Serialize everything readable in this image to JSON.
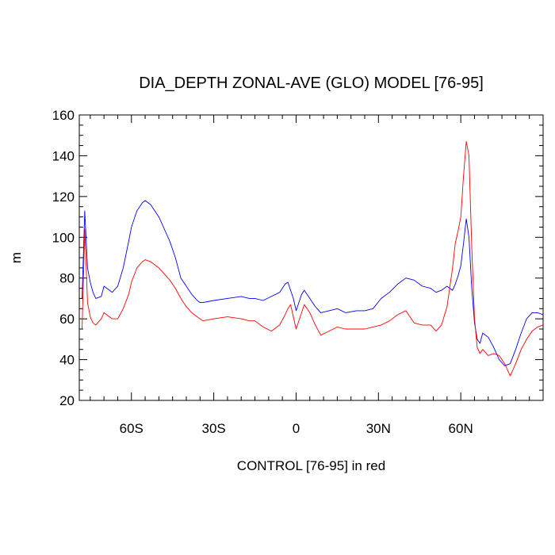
{
  "chart_data": {
    "type": "line",
    "title": "DIA_DEPTH ZONAL-AVE (GLO) MODEL [76-95]",
    "xlabel": "CONTROL [76-95] in red",
    "ylabel": "m",
    "xlim": [
      -79,
      90
    ],
    "ylim": [
      20,
      160
    ],
    "x_tick_values": [
      -60,
      -30,
      0,
      30,
      60
    ],
    "x_tick_labels": [
      "60S",
      "30S",
      "0",
      "30N",
      "60N"
    ],
    "y_ticks": [
      20,
      40,
      60,
      80,
      100,
      120,
      140,
      160
    ],
    "y_tick_labels": [
      "20",
      "40",
      "60",
      "80",
      "100",
      "120",
      "140",
      "160"
    ],
    "grid": false,
    "series": [
      {
        "color": "#0000ff",
        "x": [
          -78,
          -77,
          -76,
          -75,
          -74,
          -73,
          -71,
          -70,
          -68,
          -67,
          -65,
          -63,
          -61,
          -60,
          -58,
          -56,
          -55,
          -53,
          -50,
          -48,
          -46,
          -44,
          -42,
          -40,
          -38,
          -36,
          -35,
          -34,
          -30,
          -25,
          -20,
          -17,
          -15,
          -12,
          -9,
          -6,
          -4,
          -3,
          -2,
          -1,
          0,
          2,
          3,
          5,
          7,
          9,
          12,
          15,
          18,
          22,
          25,
          28,
          31,
          34,
          37,
          40,
          43,
          46,
          49,
          51,
          53,
          55,
          57,
          58,
          59,
          60,
          61,
          62,
          63,
          64,
          65,
          66,
          67,
          68,
          70,
          72,
          74,
          76,
          78,
          80,
          82,
          84,
          86,
          88,
          90
        ],
        "y": [
          70,
          113,
          85,
          78,
          73,
          70,
          71,
          76,
          74,
          73,
          76,
          85,
          98,
          105,
          113,
          117,
          118,
          116,
          110,
          104,
          98,
          90,
          80,
          76,
          72,
          69,
          68,
          68,
          69,
          70,
          71,
          70,
          70,
          69,
          71,
          73,
          77,
          78,
          74,
          70,
          64,
          72,
          74,
          70,
          66,
          63,
          64,
          65,
          63,
          64,
          64,
          65,
          70,
          73,
          77,
          80,
          79,
          76,
          75,
          73,
          74,
          76,
          74,
          77,
          81,
          86,
          97,
          109,
          100,
          75,
          58,
          50,
          48,
          53,
          51,
          46,
          40,
          37,
          38,
          45,
          53,
          60,
          63,
          63,
          62
        ]
      },
      {
        "color": "#ff0000",
        "x": [
          -78,
          -77,
          -76,
          -75,
          -74,
          -73,
          -71,
          -70,
          -68,
          -67,
          -65,
          -63,
          -61,
          -60,
          -58,
          -56,
          -55,
          -53,
          -50,
          -48,
          -46,
          -44,
          -42,
          -40,
          -38,
          -36,
          -35,
          -34,
          -30,
          -25,
          -20,
          -17,
          -15,
          -12,
          -9,
          -6,
          -4,
          -3,
          -2,
          -1,
          0,
          2,
          3,
          5,
          7,
          9,
          12,
          15,
          18,
          22,
          25,
          28,
          31,
          34,
          37,
          40,
          43,
          46,
          49,
          51,
          53,
          55,
          57,
          58,
          59,
          60,
          61,
          62,
          63,
          64,
          65,
          66,
          67,
          68,
          70,
          72,
          74,
          76,
          78,
          80,
          82,
          84,
          86,
          88,
          90
        ],
        "y": [
          55,
          104,
          68,
          61,
          58,
          57,
          60,
          63,
          61,
          60,
          60,
          65,
          72,
          78,
          85,
          88,
          89,
          88,
          85,
          82,
          79,
          75,
          70,
          66,
          63,
          61,
          60,
          59,
          60,
          61,
          60,
          59,
          59,
          56,
          54,
          57,
          62,
          65,
          67,
          61,
          55,
          63,
          67,
          63,
          57,
          52,
          54,
          56,
          55,
          55,
          55,
          56,
          57,
          59,
          62,
          64,
          58,
          57,
          57,
          54,
          57,
          66,
          85,
          97,
          103,
          110,
          130,
          147,
          140,
          95,
          60,
          46,
          43,
          45,
          42,
          43,
          42,
          38,
          32,
          38,
          45,
          50,
          54,
          56,
          57
        ]
      }
    ]
  }
}
